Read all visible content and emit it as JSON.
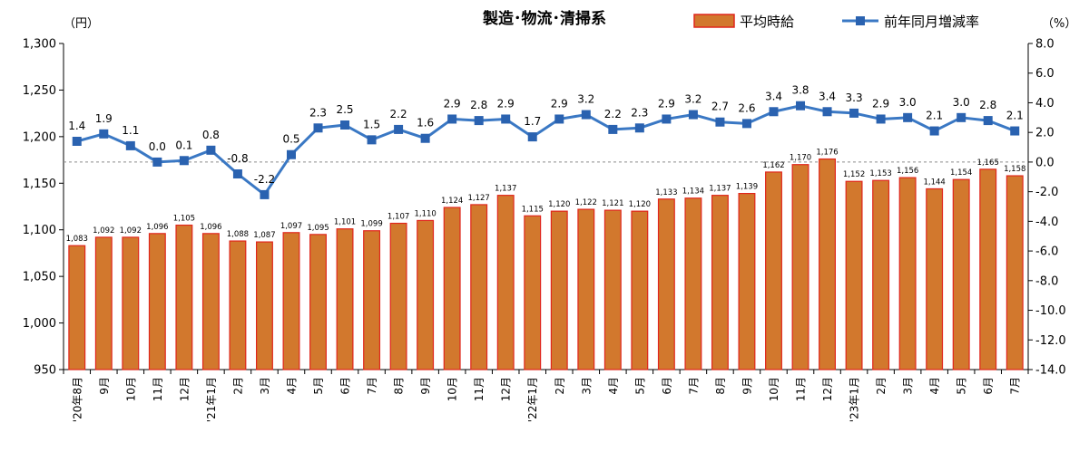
{
  "chart_data": {
    "type": "bar",
    "title": "製造･物流･清掃系",
    "y_left_unit": "（円）",
    "y_right_unit": "（%）",
    "y_left_range": [
      950,
      1300
    ],
    "y_left_ticks": [
      "950",
      "1,000",
      "1,050",
      "1,100",
      "1,150",
      "1,200",
      "1,250",
      "1,300"
    ],
    "y_right_range": [
      -14,
      8
    ],
    "y_right_ticks": [
      "-14.0",
      "-12.0",
      "-10.0",
      "-8.0",
      "-6.0",
      "-4.0",
      "-2.0",
      "0.0",
      "2.0",
      "4.0",
      "6.0",
      "8.0"
    ],
    "reference_line_right": 0,
    "categories": [
      "'20年8月",
      "9月",
      "10月",
      "11月",
      "12月",
      "'21年1月",
      "2月",
      "3月",
      "4月",
      "5月",
      "6月",
      "7月",
      "8月",
      "9月",
      "10月",
      "11月",
      "12月",
      "'22年1月",
      "2月",
      "3月",
      "4月",
      "5月",
      "6月",
      "7月",
      "8月",
      "9月",
      "10月",
      "11月",
      "12月",
      "'23年1月",
      "2月",
      "3月",
      "4月",
      "5月",
      "6月",
      "7月"
    ],
    "series": [
      {
        "name": "平均時給",
        "type": "bar",
        "axis": "left",
        "color": "#d2782d",
        "border_color": "#e0261c",
        "values": [
          1083,
          1092,
          1092,
          1096,
          1105,
          1096,
          1088,
          1087,
          1097,
          1095,
          1101,
          1099,
          1107,
          1110,
          1124,
          1127,
          1137,
          1115,
          1120,
          1122,
          1121,
          1120,
          1133,
          1134,
          1137,
          1139,
          1162,
          1170,
          1176,
          1152,
          1153,
          1156,
          1144,
          1154,
          1165,
          1158
        ],
        "labels": [
          "1,083",
          "1,092",
          "1,092",
          "1,096",
          "1,105",
          "1,096",
          "1,088",
          "1,087",
          "1,097",
          "1,095",
          "1,101",
          "1,099",
          "1,107",
          "1,110",
          "1,124",
          "1,127",
          "1,137",
          "1,115",
          "1,120",
          "1,122",
          "1,121",
          "1,120",
          "1,133",
          "1,134",
          "1,137",
          "1,139",
          "1,162",
          "1,170",
          "1,176",
          "1,152",
          "1,153",
          "1,156",
          "1,144",
          "1,154",
          "1,165",
          "1,158"
        ]
      },
      {
        "name": "前年同月増減率",
        "type": "line",
        "axis": "right",
        "color": "#3a78c4",
        "marker_color": "#2a62b0",
        "values": [
          1.4,
          1.9,
          1.1,
          0.0,
          0.1,
          0.8,
          -0.8,
          -2.2,
          0.5,
          2.3,
          2.5,
          1.5,
          2.2,
          1.6,
          2.9,
          2.8,
          2.9,
          1.7,
          2.9,
          3.2,
          2.2,
          2.3,
          2.9,
          3.2,
          2.7,
          2.6,
          3.4,
          3.8,
          3.4,
          3.3,
          2.9,
          3.0,
          2.1,
          3.0,
          2.8,
          2.1
        ],
        "labels": [
          "1.4",
          "1.9",
          "1.1",
          "0.0",
          "0.1",
          "0.8",
          "-0.8",
          "-2.2",
          "0.5",
          "2.3",
          "2.5",
          "1.5",
          "2.2",
          "1.6",
          "2.9",
          "2.8",
          "2.9",
          "1.7",
          "2.9",
          "3.2",
          "2.2",
          "2.3",
          "2.9",
          "3.2",
          "2.7",
          "2.6",
          "3.4",
          "3.8",
          "3.4",
          "3.3",
          "2.9",
          "3.0",
          "2.1",
          "3.0",
          "2.8",
          "2.1"
        ]
      }
    ],
    "legend_position": "top-right",
    "grid": false
  }
}
